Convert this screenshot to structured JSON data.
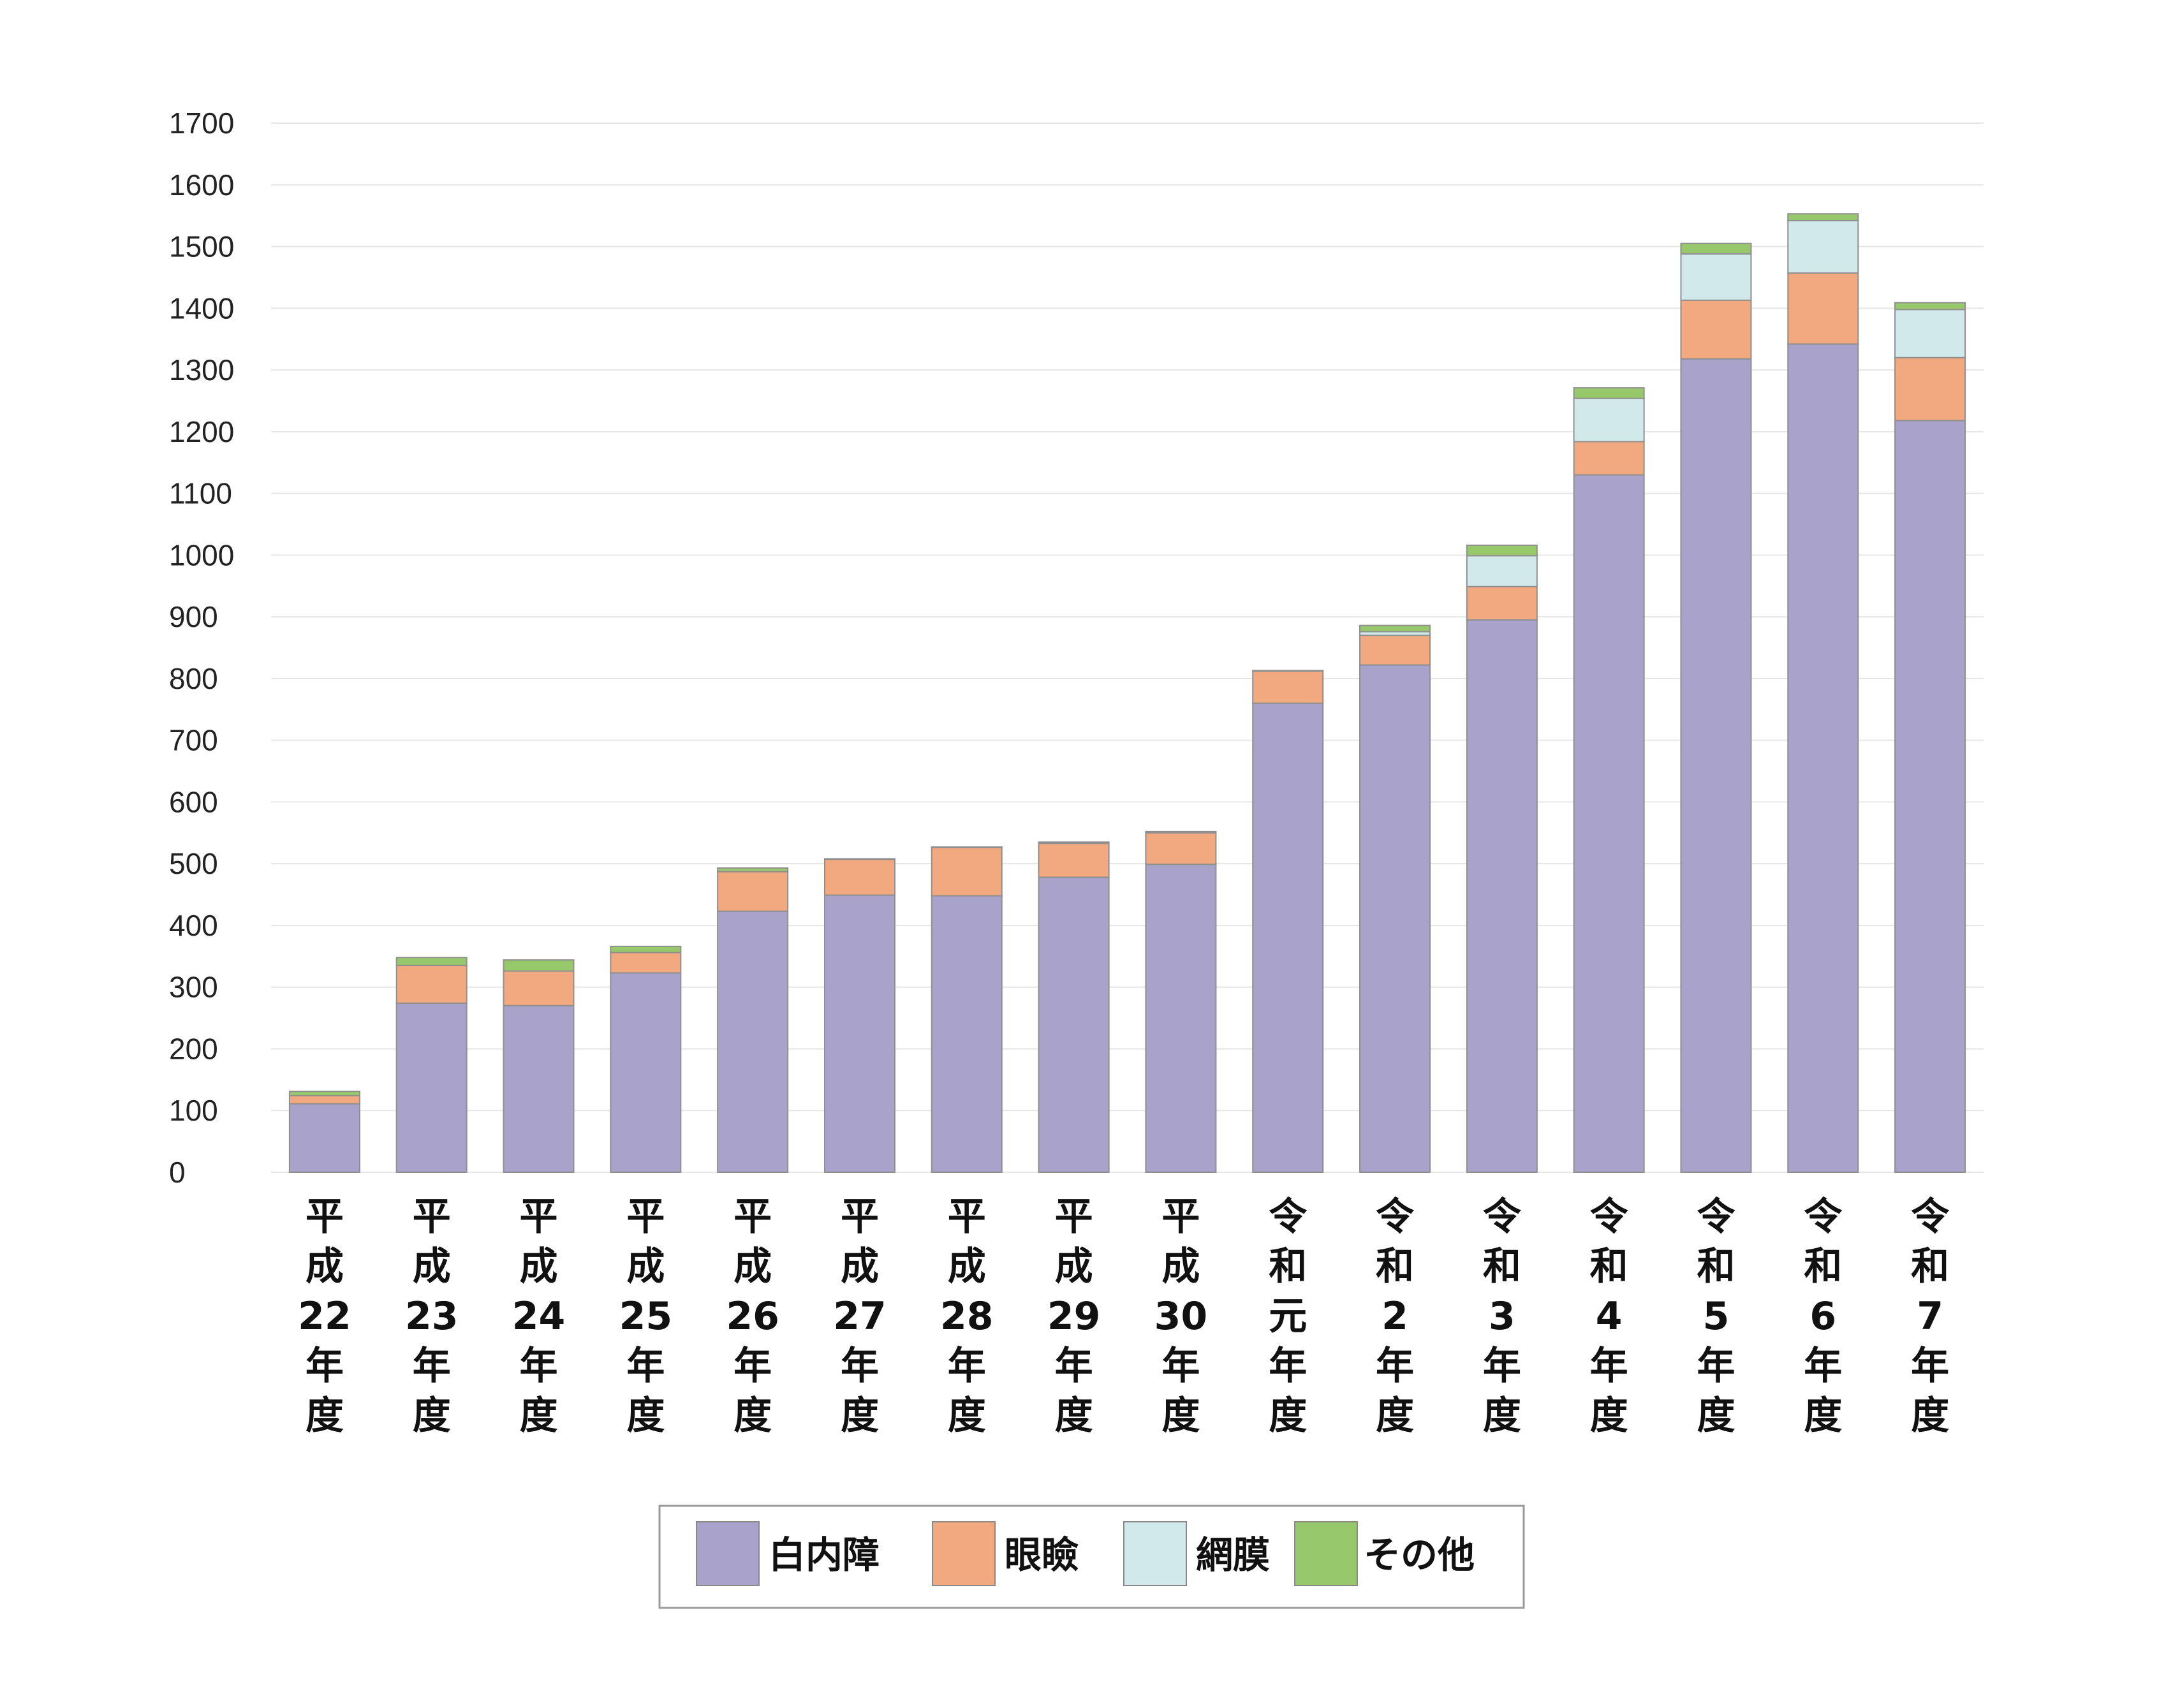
{
  "chart_data": {
    "type": "bar",
    "stacked": true,
    "title": "",
    "xlabel": "",
    "ylabel": "",
    "ylim": [
      0,
      1700
    ],
    "yticks": [
      0,
      100,
      200,
      300,
      400,
      500,
      600,
      700,
      800,
      900,
      1000,
      1100,
      1200,
      1300,
      1400,
      1500,
      1600,
      1700
    ],
    "grid": true,
    "legend_position": "bottom",
    "categories": [
      [
        "平",
        "成",
        "22",
        "年",
        "度"
      ],
      [
        "平",
        "成",
        "23",
        "年",
        "度"
      ],
      [
        "平",
        "成",
        "24",
        "年",
        "度"
      ],
      [
        "平",
        "成",
        "25",
        "年",
        "度"
      ],
      [
        "平",
        "成",
        "26",
        "年",
        "度"
      ],
      [
        "平",
        "成",
        "27",
        "年",
        "度"
      ],
      [
        "平",
        "成",
        "28",
        "年",
        "度"
      ],
      [
        "平",
        "成",
        "29",
        "年",
        "度"
      ],
      [
        "平",
        "成",
        "30",
        "年",
        "度"
      ],
      [
        "令",
        "和",
        "元",
        "年",
        "度"
      ],
      [
        "令",
        "和",
        "2",
        "年",
        "度"
      ],
      [
        "令",
        "和",
        "3",
        "年",
        "度"
      ],
      [
        "令",
        "和",
        "4",
        "年",
        "度"
      ],
      [
        "令",
        "和",
        "5",
        "年",
        "度"
      ],
      [
        "令",
        "和",
        "6",
        "年",
        "度"
      ],
      [
        "令",
        "和",
        "7",
        "年",
        "度"
      ]
    ],
    "series": [
      {
        "name": "白内障",
        "color": "#a9a2cb",
        "values": [
          111,
          274,
          270,
          323,
          423,
          449,
          448,
          478,
          499,
          760,
          822,
          895,
          1130,
          1318,
          1342,
          1218
        ]
      },
      {
        "name": "眼瞼",
        "color": "#f2a97f",
        "values": [
          13,
          61,
          56,
          33,
          64,
          58,
          78,
          55,
          51,
          52,
          48,
          54,
          54,
          95,
          115,
          102
        ]
      },
      {
        "name": "網膜",
        "color": "#d2e9ec",
        "values": [
          0,
          0,
          0,
          0,
          0,
          0,
          0,
          0,
          0,
          0,
          6,
          50,
          70,
          75,
          85,
          78
        ]
      },
      {
        "name": "その他",
        "color": "#98c86c",
        "values": [
          7,
          13,
          18,
          10,
          6,
          1,
          1,
          2,
          2,
          1,
          10,
          17,
          17,
          17,
          11,
          11
        ]
      }
    ]
  }
}
